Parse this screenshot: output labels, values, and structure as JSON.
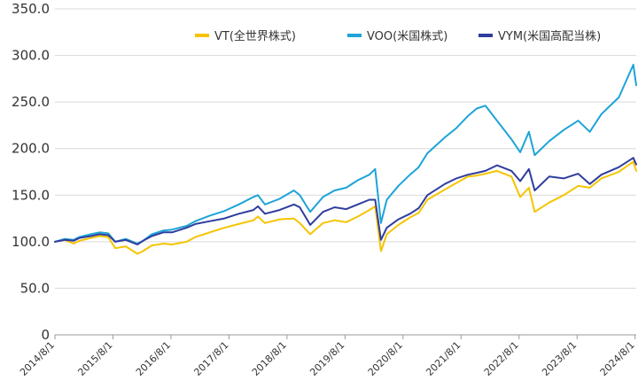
{
  "chart_data": {
    "type": "line",
    "title": "",
    "xlabel": "",
    "ylabel": "",
    "ylim": [
      0,
      350
    ],
    "y_ticks": [
      "0",
      "50.0",
      "100.0",
      "150.0",
      "200.0",
      "250.0",
      "300.0",
      "350.0"
    ],
    "x_ticks": [
      "2014/8/1",
      "2015/8/1",
      "2016/8/1",
      "2017/8/1",
      "2018/8/1",
      "2019/8/1",
      "2020/8/1",
      "2021/8/1",
      "2022/8/1",
      "2023/8/1",
      "2024/8/1"
    ],
    "grid": "horizontal",
    "legend_position": "top-right",
    "series": [
      {
        "name": "VT(全世界株式)",
        "color": "#f5c400",
        "x": [
          2014.58,
          2014.75,
          2014.9,
          2015.0,
          2015.2,
          2015.35,
          2015.5,
          2015.62,
          2015.8,
          2016.0,
          2016.1,
          2016.25,
          2016.45,
          2016.6,
          2016.85,
          2017.0,
          2017.25,
          2017.5,
          2017.75,
          2018.0,
          2018.08,
          2018.2,
          2018.45,
          2018.7,
          2018.8,
          2018.98,
          2019.2,
          2019.4,
          2019.6,
          2019.8,
          2020.0,
          2020.1,
          2020.2,
          2020.3,
          2020.5,
          2020.7,
          2020.85,
          2021.0,
          2021.3,
          2021.5,
          2021.7,
          2021.85,
          2022.0,
          2022.2,
          2022.45,
          2022.6,
          2022.75,
          2022.85,
          2023.1,
          2023.35,
          2023.6,
          2023.8,
          2024.0,
          2024.3,
          2024.55,
          2024.6
        ],
        "y": [
          100,
          102,
          98,
          101,
          104,
          106,
          105,
          93,
          95,
          87,
          90,
          96,
          98,
          97,
          100,
          105,
          110,
          115,
          119,
          123,
          127,
          120,
          124,
          125,
          120,
          108,
          120,
          123,
          121,
          127,
          134,
          138,
          90,
          108,
          118,
          126,
          131,
          145,
          156,
          163,
          170,
          171,
          173,
          176,
          170,
          148,
          158,
          132,
          142,
          150,
          160,
          158,
          168,
          175,
          186,
          176
        ]
      },
      {
        "name": "VOO(米国株式)",
        "color": "#1da4d8",
        "x": [
          2014.58,
          2014.75,
          2014.9,
          2015.0,
          2015.2,
          2015.35,
          2015.5,
          2015.62,
          2015.8,
          2016.0,
          2016.1,
          2016.25,
          2016.45,
          2016.6,
          2016.85,
          2017.0,
          2017.25,
          2017.5,
          2017.75,
          2018.0,
          2018.08,
          2018.2,
          2018.45,
          2018.7,
          2018.8,
          2018.98,
          2019.2,
          2019.4,
          2019.6,
          2019.8,
          2020.0,
          2020.1,
          2020.2,
          2020.3,
          2020.5,
          2020.7,
          2020.85,
          2021.0,
          2021.3,
          2021.5,
          2021.7,
          2021.85,
          2022.0,
          2022.2,
          2022.45,
          2022.6,
          2022.75,
          2022.85,
          2023.1,
          2023.35,
          2023.6,
          2023.8,
          2024.0,
          2024.3,
          2024.55,
          2024.6
        ],
        "y": [
          100,
          103,
          102,
          105,
          108,
          110,
          109,
          100,
          103,
          98,
          101,
          108,
          112,
          113,
          117,
          122,
          128,
          133,
          140,
          148,
          150,
          140,
          146,
          155,
          150,
          132,
          148,
          155,
          158,
          166,
          172,
          178,
          120,
          145,
          160,
          172,
          180,
          195,
          212,
          222,
          235,
          243,
          246,
          230,
          210,
          196,
          218,
          193,
          208,
          220,
          230,
          218,
          237,
          255,
          290,
          268
        ]
      },
      {
        "name": "VYM(米国高配当株)",
        "color": "#2f3d9e",
        "x": [
          2014.58,
          2014.75,
          2014.9,
          2015.0,
          2015.2,
          2015.35,
          2015.5,
          2015.62,
          2015.8,
          2016.0,
          2016.1,
          2016.25,
          2016.45,
          2016.6,
          2016.85,
          2017.0,
          2017.25,
          2017.5,
          2017.75,
          2018.0,
          2018.08,
          2018.2,
          2018.45,
          2018.7,
          2018.8,
          2018.98,
          2019.2,
          2019.4,
          2019.6,
          2019.8,
          2020.0,
          2020.1,
          2020.2,
          2020.3,
          2020.5,
          2020.7,
          2020.85,
          2021.0,
          2021.3,
          2021.5,
          2021.7,
          2021.85,
          2022.0,
          2022.2,
          2022.45,
          2022.6,
          2022.75,
          2022.85,
          2023.1,
          2023.35,
          2023.6,
          2023.8,
          2024.0,
          2024.3,
          2024.55,
          2024.6
        ],
        "y": [
          100,
          102,
          101,
          104,
          106,
          108,
          107,
          100,
          102,
          97,
          101,
          106,
          110,
          110,
          115,
          119,
          122,
          125,
          130,
          134,
          138,
          130,
          134,
          140,
          137,
          118,
          132,
          137,
          135,
          140,
          145,
          145,
          102,
          115,
          124,
          130,
          136,
          150,
          162,
          168,
          172,
          174,
          176,
          182,
          176,
          165,
          178,
          155,
          170,
          168,
          173,
          162,
          172,
          180,
          190,
          183
        ]
      }
    ]
  }
}
